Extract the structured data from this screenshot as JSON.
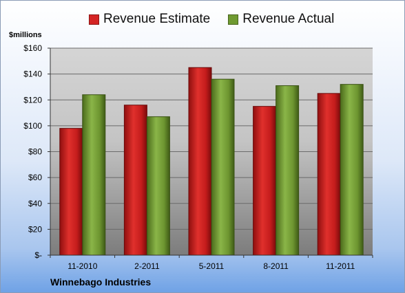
{
  "chart_data": {
    "type": "bar",
    "ylabel": "$millions",
    "footer": "Winnebago Industries",
    "categories": [
      "11-2010",
      "2-2011",
      "5-2011",
      "8-2011",
      "11-2011"
    ],
    "series": [
      {
        "name": "Revenue Estimate",
        "values": [
          98,
          116,
          145,
          115,
          125
        ],
        "color": "#d42424"
      },
      {
        "name": "Revenue Actual",
        "values": [
          124,
          107,
          136,
          131,
          132
        ],
        "color": "#6f9a31"
      }
    ],
    "ylim": [
      0,
      160
    ],
    "yticks": [
      0,
      20,
      40,
      60,
      80,
      100,
      120,
      140,
      160
    ],
    "ytick_labels": [
      "$-",
      "$20",
      "$40",
      "$60",
      "$80",
      "$100",
      "$120",
      "$140",
      "$160"
    ],
    "grid": true,
    "legend": "top"
  }
}
